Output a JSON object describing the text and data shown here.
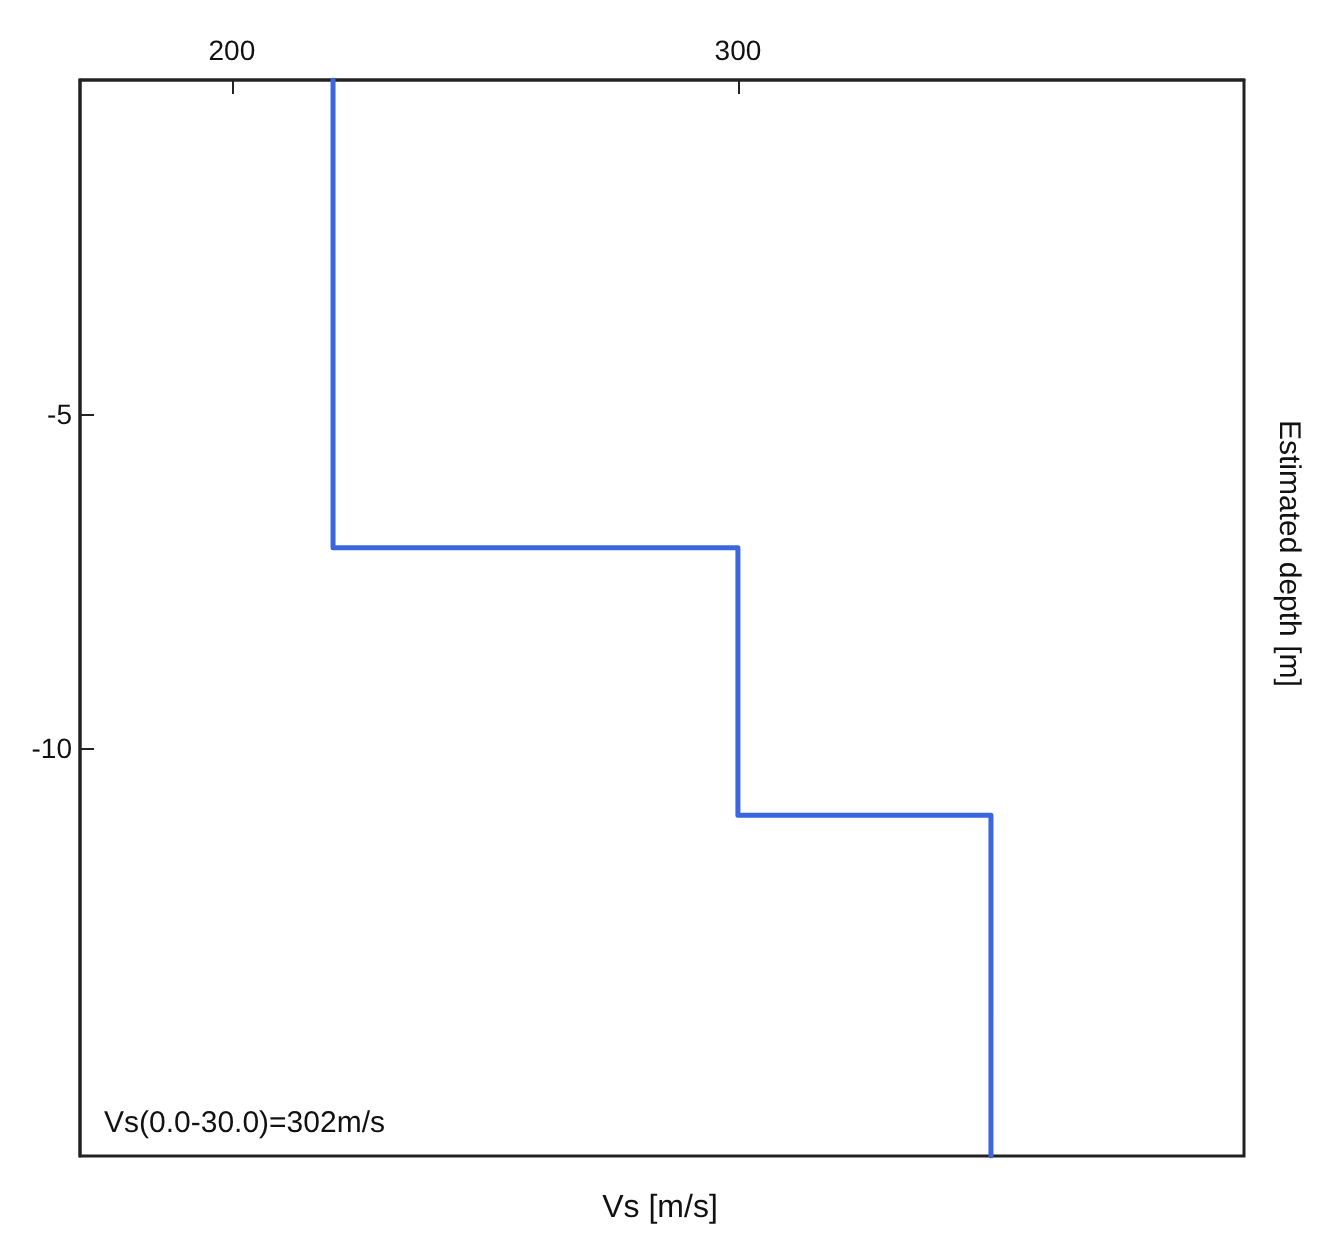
{
  "chart_data": {
    "type": "line",
    "xlabel": "Vs [m/s]",
    "ylabel": "Estimated depth [m]",
    "annotations": [
      "Vs(0.0-30.0)=302m/s"
    ],
    "xlim": [
      170,
      400
    ],
    "xticks": [
      200,
      300
    ],
    "ylim": [
      -16.1,
      0
    ],
    "yticks": [
      -5,
      -10
    ],
    "grid": false,
    "marker": "none",
    "line_style": "solid",
    "series": [
      {
        "color": "#3a66e0",
        "x": [
          220,
          220,
          300,
          300,
          350,
          350
        ],
        "values": [
          0,
          -7,
          -7,
          -11,
          -11,
          -16.1
        ]
      }
    ]
  }
}
